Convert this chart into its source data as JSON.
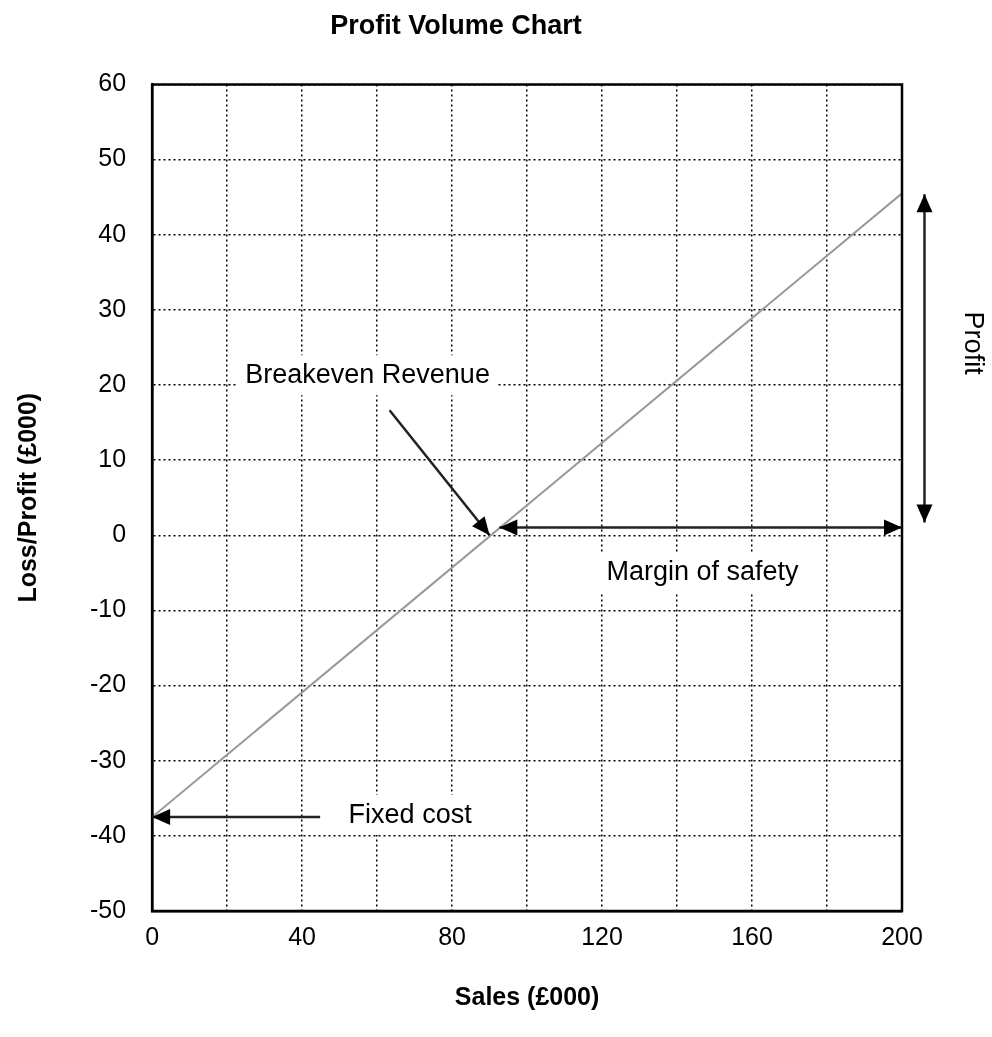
{
  "chart_data": {
    "type": "line",
    "title": "Profit Volume Chart",
    "xlabel": "Sales (£000)",
    "ylabel": "Loss/Profit (£000)",
    "x": [
      0,
      200
    ],
    "series": [
      {
        "color": "#999999",
        "values": [
          -37.5,
          45.5
        ]
      }
    ],
    "xlim": [
      0,
      200
    ],
    "xticks": [
      0,
      {
        "value": 20,
        "label": null
      },
      40,
      {
        "value": 60,
        "label": null
      },
      80,
      {
        "value": 100,
        "label": null
      },
      120,
      {
        "value": 140,
        "label": null
      },
      160,
      {
        "value": 180,
        "label": null
      },
      200
    ],
    "ylim": [
      -50,
      60
    ],
    "yticks": [
      -50,
      -40,
      -30,
      -20,
      -10,
      0,
      10,
      20,
      30,
      40,
      50,
      60
    ],
    "grid": true,
    "legend": false,
    "marker": "none",
    "line_style": "solid",
    "annotations": [
      {
        "text": "Breakeven Revenue",
        "x": 90,
        "y": 0
      },
      "Margin of safety",
      "Profit",
      {
        "text": "Fixed cost",
        "x": 0,
        "y": -37.5
      }
    ]
  }
}
